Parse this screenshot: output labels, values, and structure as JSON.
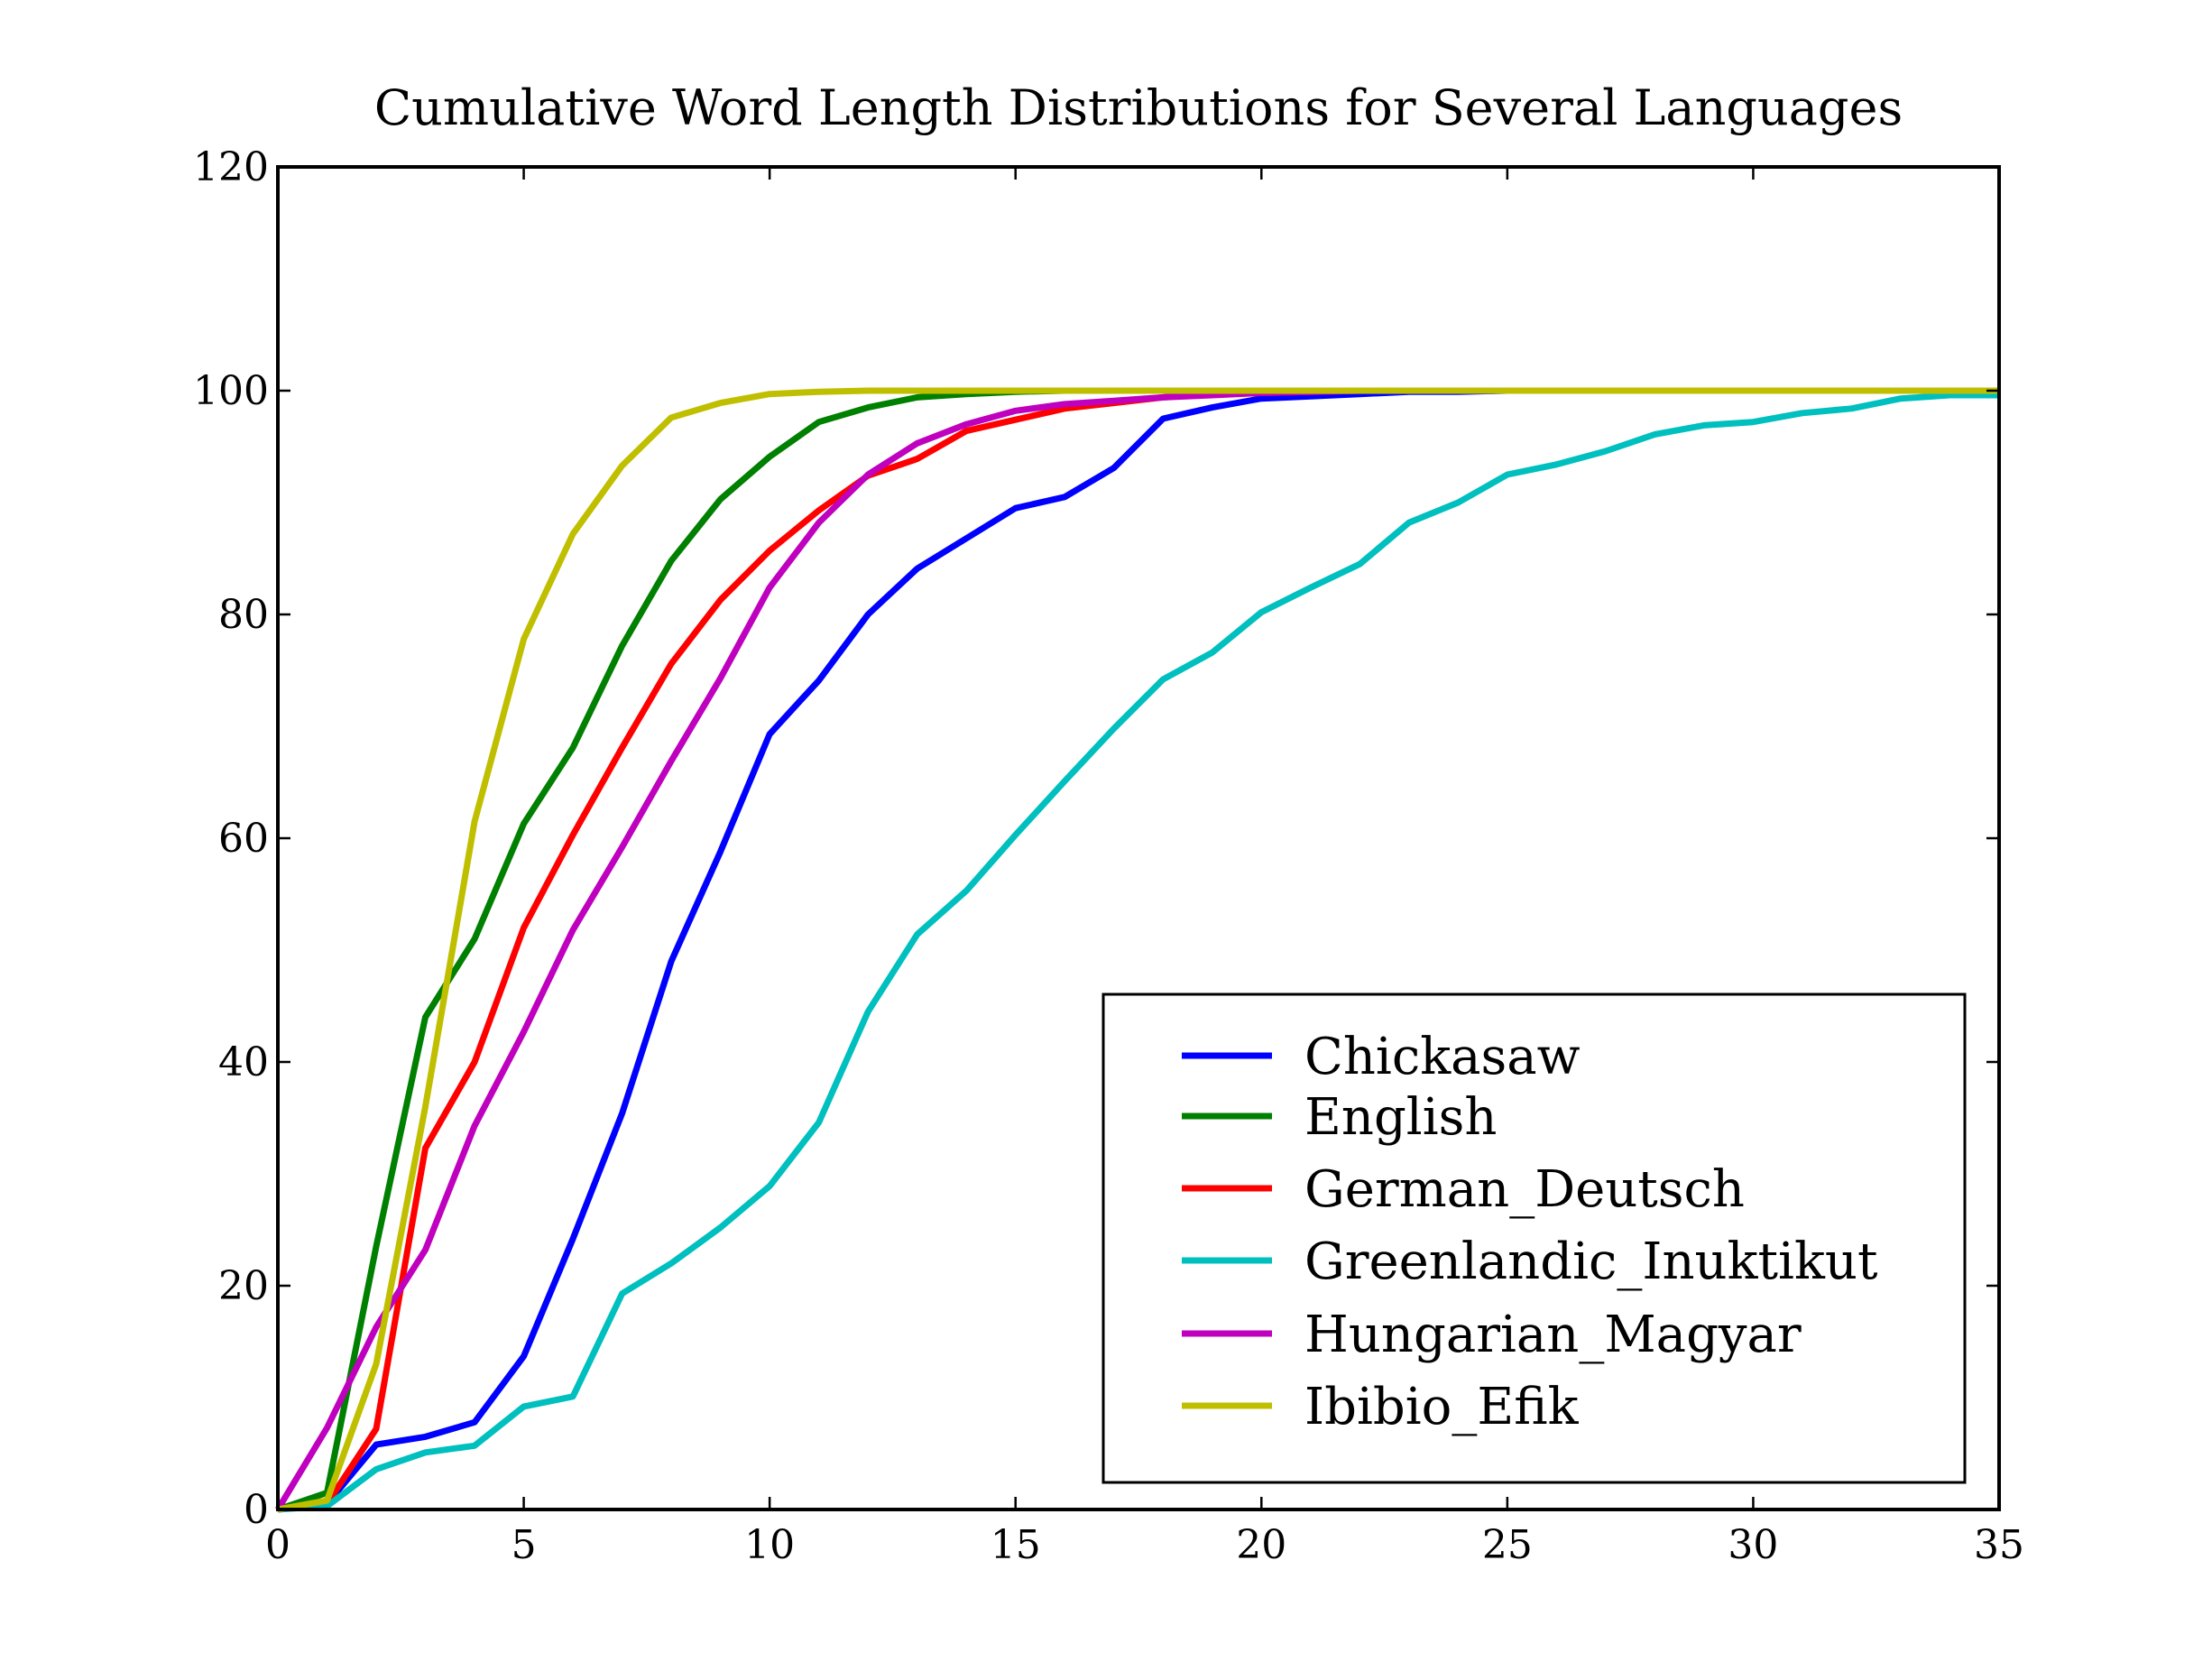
{
  "chart_data": {
    "type": "line",
    "title": "Cumulative Word Length Distributions for Several Languages",
    "xlabel": "",
    "ylabel": "",
    "xlim": [
      0,
      35
    ],
    "ylim": [
      0,
      120
    ],
    "xticks": [
      0,
      5,
      10,
      15,
      20,
      25,
      30,
      35
    ],
    "yticks": [
      0,
      20,
      40,
      60,
      80,
      100,
      120
    ],
    "grid": false,
    "legend_position": "lower-right",
    "series": [
      {
        "name": "Chickasaw",
        "color": "#0000ff",
        "x": [
          0,
          1,
          2,
          3,
          4,
          5,
          6,
          7,
          8,
          9,
          10,
          11,
          12,
          13,
          14,
          15,
          16,
          17,
          18,
          19,
          20,
          21,
          22,
          23,
          24,
          25,
          26,
          27,
          28,
          29,
          30,
          31,
          32,
          33,
          34,
          35
        ],
        "y": [
          0,
          0.5,
          5.8,
          6.5,
          7.8,
          13.7,
          24.2,
          35.4,
          49.0,
          58.8,
          69.3,
          74.1,
          80.0,
          84.1,
          86.8,
          89.5,
          90.5,
          93.1,
          97.5,
          98.5,
          99.3,
          99.5,
          99.7,
          99.9,
          99.9,
          100,
          100,
          100,
          100,
          100,
          100,
          100,
          100,
          100,
          100,
          100
        ]
      },
      {
        "name": "English",
        "color": "#008000",
        "x": [
          0,
          1,
          2,
          3,
          4,
          5,
          6,
          7,
          8,
          9,
          10,
          11,
          12,
          13,
          14,
          15,
          16,
          17,
          18,
          19,
          20,
          21,
          22,
          23,
          24,
          25,
          26,
          27,
          28,
          29,
          30,
          31,
          32,
          33,
          34,
          35
        ],
        "y": [
          0,
          1.5,
          23.5,
          44.0,
          51.0,
          61.3,
          68.1,
          77.2,
          84.8,
          90.3,
          94.1,
          97.2,
          98.5,
          99.4,
          99.7,
          99.9,
          100,
          100,
          100,
          100,
          100,
          100,
          100,
          100,
          100,
          100,
          100,
          100,
          100,
          100,
          100,
          100,
          100,
          100,
          100,
          100
        ]
      },
      {
        "name": "German_Deutsch",
        "color": "#ff0000",
        "x": [
          0,
          1,
          2,
          3,
          4,
          5,
          6,
          7,
          8,
          9,
          10,
          11,
          12,
          13,
          14,
          15,
          16,
          17,
          18,
          19,
          20,
          21,
          22,
          23,
          24,
          25,
          26,
          27,
          28,
          29,
          30,
          31,
          32,
          33,
          34,
          35
        ],
        "y": [
          0,
          0.5,
          7.2,
          32.3,
          40.0,
          52.0,
          60.3,
          68.1,
          75.6,
          81.3,
          85.7,
          89.3,
          92.4,
          93.9,
          96.4,
          97.4,
          98.4,
          98.9,
          99.4,
          99.7,
          99.8,
          99.9,
          100,
          100,
          100,
          100,
          100,
          100,
          100,
          100,
          100,
          100,
          100,
          100,
          100,
          100
        ]
      },
      {
        "name": "Greenlandic_Inuktikut",
        "color": "#00bfbf",
        "x": [
          0,
          1,
          2,
          3,
          4,
          5,
          6,
          7,
          8,
          9,
          10,
          11,
          12,
          13,
          14,
          15,
          16,
          17,
          18,
          19,
          20,
          21,
          22,
          23,
          24,
          25,
          26,
          27,
          28,
          29,
          30,
          31,
          32,
          33,
          34,
          35
        ],
        "y": [
          0,
          0.3,
          3.6,
          5.1,
          5.7,
          9.2,
          10.1,
          19.3,
          22.0,
          25.2,
          28.9,
          34.6,
          44.5,
          51.4,
          55.3,
          60.3,
          65.1,
          69.8,
          74.2,
          76.6,
          80.2,
          82.4,
          84.5,
          88.2,
          90.0,
          92.5,
          93.4,
          94.6,
          96.1,
          96.9,
          97.2,
          98.0,
          98.4,
          99.3,
          99.6,
          99.6
        ]
      },
      {
        "name": "Hungarian_Magyar",
        "color": "#bf00bf",
        "x": [
          0,
          1,
          2,
          3,
          4,
          5,
          6,
          7,
          8,
          9,
          10,
          11,
          12,
          13,
          14,
          15,
          16,
          17,
          18,
          19,
          20,
          21,
          22,
          23,
          24,
          25,
          26,
          27,
          28,
          29,
          30,
          31,
          32,
          33,
          34,
          35
        ],
        "y": [
          0,
          7.3,
          16.3,
          23.2,
          34.3,
          42.7,
          51.8,
          59.2,
          66.9,
          74.3,
          82.4,
          88.2,
          92.5,
          95.3,
          97.0,
          98.2,
          98.8,
          99.1,
          99.4,
          99.6,
          99.8,
          99.9,
          100,
          100,
          100,
          100,
          100,
          100,
          100,
          100,
          100,
          100,
          100,
          100,
          100,
          100
        ]
      },
      {
        "name": "Ibibio_Efik",
        "color": "#bfbf00",
        "x": [
          0,
          1,
          2,
          3,
          4,
          5,
          6,
          7,
          8,
          9,
          10,
          11,
          12,
          13,
          14,
          15,
          16,
          17,
          18,
          19,
          20,
          21,
          22,
          23,
          24,
          25,
          26,
          27,
          28,
          29,
          30,
          31,
          32,
          33,
          34,
          35
        ],
        "y": [
          0,
          0.8,
          13.0,
          36.0,
          61.5,
          77.8,
          87.2,
          93.3,
          97.6,
          98.9,
          99.7,
          99.9,
          100,
          100,
          100,
          100,
          100,
          100,
          100,
          100,
          100,
          100,
          100,
          100,
          100,
          100,
          100,
          100,
          100,
          100,
          100,
          100,
          100,
          100,
          100,
          100
        ]
      }
    ]
  }
}
